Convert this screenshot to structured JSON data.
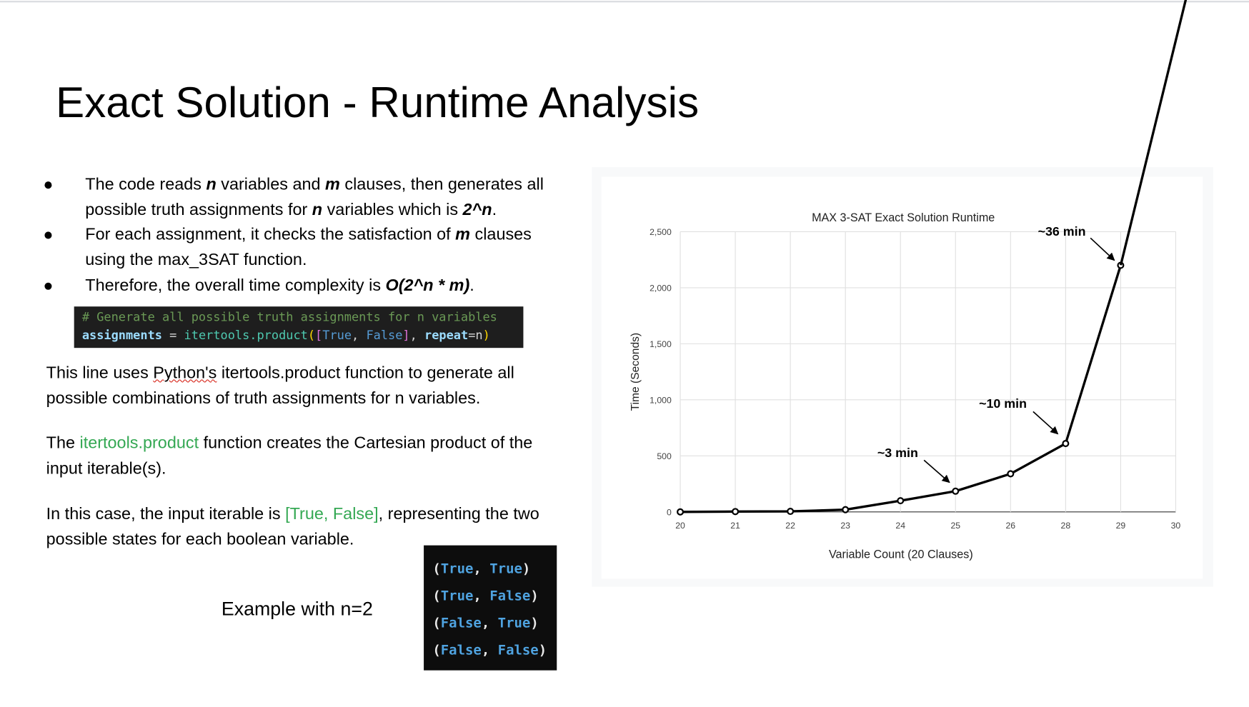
{
  "slide": {
    "title": "Exact Solution - Runtime Analysis",
    "bullets": [
      [
        "The code reads ",
        "n",
        " variables and ",
        "m",
        " clauses, then generates all possible truth assignments for ",
        "n",
        " variables which is ",
        "2^n",
        "."
      ],
      [
        "For each assignment, it checks the satisfaction of ",
        "m",
        " clauses using the max_3SAT function."
      ],
      [
        "Therefore, the overall time complexity is ",
        "O(2^n * m)",
        "."
      ]
    ],
    "code": {
      "comment": "# Generate all possible truth assignments for n variables",
      "line": [
        "assignments",
        " = ",
        "itertools.product",
        "(",
        "[",
        "True",
        ", ",
        "False",
        "]",
        ", ",
        "repeat",
        "=n",
        ")"
      ]
    },
    "paragraphs": [
      [
        "This line uses ",
        "Python's",
        " itertools.product function to generate all possible combinations of truth assignments for n variables."
      ],
      [
        "The ",
        "itertools.product",
        " function creates the Cartesian product of the input iterable(s)."
      ],
      [
        "In this case, the input iterable is ",
        "[True, False]",
        ", representing the two possible states for each boolean variable."
      ]
    ],
    "example_label": "Example with n=2",
    "example_rows": [
      [
        "(",
        "True",
        ", ",
        "True",
        ")"
      ],
      [
        "(",
        "True",
        ", ",
        "False",
        ")"
      ],
      [
        "(",
        "False",
        ", ",
        "True",
        ")"
      ],
      [
        "(",
        "False",
        ", ",
        "False",
        ")"
      ]
    ]
  },
  "chart_data": {
    "type": "line",
    "title": "MAX 3-SAT Exact Solution Runtime",
    "x_label": "Variable Count (20 Clauses)",
    "y_label": "Time (Seconds)",
    "categories": [
      "20",
      "21",
      "22",
      "23",
      "24",
      "25",
      "26",
      "28",
      "29",
      "30"
    ],
    "values": [
      0,
      3,
      5,
      20,
      100,
      185,
      340,
      610,
      2200,
      null
    ],
    "color": "#000000",
    "ylim": [
      0,
      2500
    ],
    "yticks": [
      0,
      500,
      {
        "value": 1000,
        "label": "1,000"
      },
      {
        "value": 1500,
        "label": "1,500"
      },
      {
        "value": 2000,
        "label": "2,000"
      },
      {
        "value": 2500,
        "label": "2,500"
      }
    ],
    "grid": true,
    "annotations": [
      "~3 min",
      "~10 min",
      "~36 min"
    ]
  }
}
